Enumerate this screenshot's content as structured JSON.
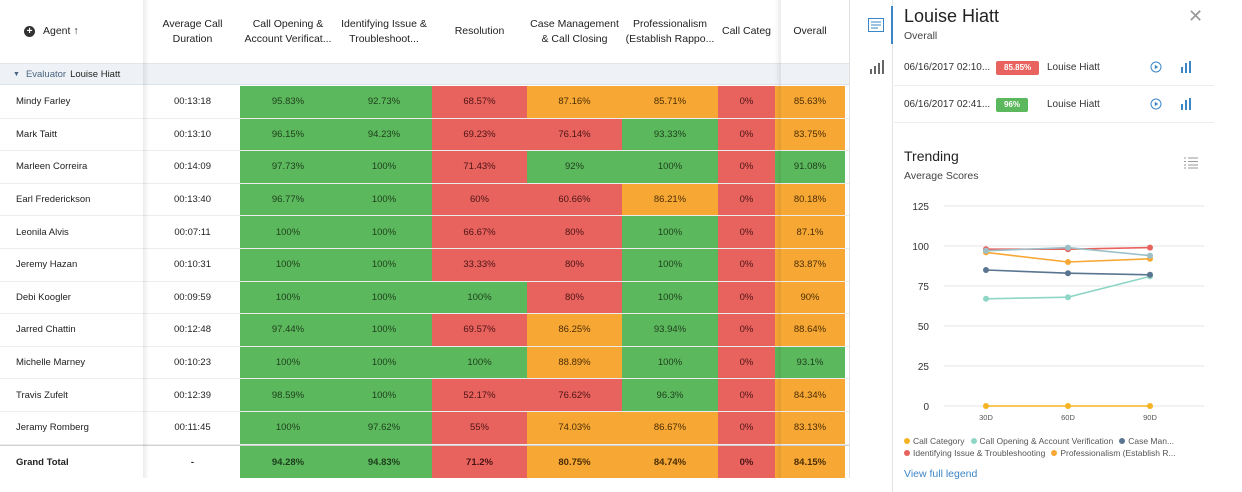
{
  "table": {
    "headers": [
      {
        "label": "Agent ↑"
      },
      {
        "label": "Average Call Duration"
      },
      {
        "label": "Call Opening & Account Verificat..."
      },
      {
        "label": "Identifying Issue & Troubleshoot..."
      },
      {
        "label": "Resolution"
      },
      {
        "label": "Case Management & Call Closing"
      },
      {
        "label": "Professionalism (Establish Rappo..."
      },
      {
        "label": "Call Categ"
      },
      {
        "label": "Overall"
      }
    ],
    "evaluator_label": "Evaluator",
    "evaluator_name": "Louise Hiatt",
    "rows": [
      {
        "agent": "Mindy Farley",
        "duration": "00:13:18",
        "cells": [
          [
            "95.83%",
            "g"
          ],
          [
            "92.73%",
            "g"
          ],
          [
            "68.57%",
            "r"
          ],
          [
            "87.16%",
            "o"
          ],
          [
            "85.71%",
            "o"
          ],
          [
            "0%",
            "r"
          ],
          [
            "85.63%",
            "o"
          ]
        ]
      },
      {
        "agent": "Mark Taitt",
        "duration": "00:13:10",
        "cells": [
          [
            "96.15%",
            "g"
          ],
          [
            "94.23%",
            "g"
          ],
          [
            "69.23%",
            "r"
          ],
          [
            "76.14%",
            "r"
          ],
          [
            "93.33%",
            "g"
          ],
          [
            "0%",
            "r"
          ],
          [
            "83.75%",
            "o"
          ]
        ]
      },
      {
        "agent": "Marleen Correira",
        "duration": "00:14:09",
        "cells": [
          [
            "97.73%",
            "g"
          ],
          [
            "100%",
            "g"
          ],
          [
            "71.43%",
            "r"
          ],
          [
            "92%",
            "g"
          ],
          [
            "100%",
            "g"
          ],
          [
            "0%",
            "r"
          ],
          [
            "91.08%",
            "g"
          ]
        ]
      },
      {
        "agent": "Earl Frederickson",
        "duration": "00:13:40",
        "cells": [
          [
            "96.77%",
            "g"
          ],
          [
            "100%",
            "g"
          ],
          [
            "60%",
            "r"
          ],
          [
            "60.66%",
            "r"
          ],
          [
            "86.21%",
            "o"
          ],
          [
            "0%",
            "r"
          ],
          [
            "80.18%",
            "o"
          ]
        ]
      },
      {
        "agent": "Leonila Alvis",
        "duration": "00:07:11",
        "cells": [
          [
            "100%",
            "g"
          ],
          [
            "100%",
            "g"
          ],
          [
            "66.67%",
            "r"
          ],
          [
            "80%",
            "r"
          ],
          [
            "100%",
            "g"
          ],
          [
            "0%",
            "r"
          ],
          [
            "87.1%",
            "o"
          ]
        ]
      },
      {
        "agent": "Jeremy Hazan",
        "duration": "00:10:31",
        "cells": [
          [
            "100%",
            "g"
          ],
          [
            "100%",
            "g"
          ],
          [
            "33.33%",
            "r"
          ],
          [
            "80%",
            "r"
          ],
          [
            "100%",
            "g"
          ],
          [
            "0%",
            "r"
          ],
          [
            "83.87%",
            "o"
          ]
        ]
      },
      {
        "agent": "Debi Koogler",
        "duration": "00:09:59",
        "cells": [
          [
            "100%",
            "g"
          ],
          [
            "100%",
            "g"
          ],
          [
            "100%",
            "g"
          ],
          [
            "80%",
            "r"
          ],
          [
            "100%",
            "g"
          ],
          [
            "0%",
            "r"
          ],
          [
            "90%",
            "o"
          ]
        ]
      },
      {
        "agent": "Jarred Chattin",
        "duration": "00:12:48",
        "cells": [
          [
            "97.44%",
            "g"
          ],
          [
            "100%",
            "g"
          ],
          [
            "69.57%",
            "r"
          ],
          [
            "86.25%",
            "o"
          ],
          [
            "93.94%",
            "g"
          ],
          [
            "0%",
            "r"
          ],
          [
            "88.64%",
            "o"
          ]
        ]
      },
      {
        "agent": "Michelle Marney",
        "duration": "00:10:23",
        "cells": [
          [
            "100%",
            "g"
          ],
          [
            "100%",
            "g"
          ],
          [
            "100%",
            "g"
          ],
          [
            "88.89%",
            "o"
          ],
          [
            "100%",
            "g"
          ],
          [
            "0%",
            "r"
          ],
          [
            "93.1%",
            "g"
          ]
        ]
      },
      {
        "agent": "Travis Zufelt",
        "duration": "00:12:39",
        "cells": [
          [
            "98.59%",
            "g"
          ],
          [
            "100%",
            "g"
          ],
          [
            "52.17%",
            "r"
          ],
          [
            "76.62%",
            "r"
          ],
          [
            "96.3%",
            "g"
          ],
          [
            "0%",
            "r"
          ],
          [
            "84.34%",
            "o"
          ]
        ]
      },
      {
        "agent": "Jeramy Romberg",
        "duration": "00:11:45",
        "cells": [
          [
            "100%",
            "g"
          ],
          [
            "97.62%",
            "g"
          ],
          [
            "55%",
            "r"
          ],
          [
            "74.03%",
            "o"
          ],
          [
            "86.67%",
            "o"
          ],
          [
            "0%",
            "r"
          ],
          [
            "83.13%",
            "o"
          ]
        ]
      }
    ],
    "total": {
      "agent": "Grand Total",
      "duration": "-",
      "cells": [
        [
          "94.28%",
          "g"
        ],
        [
          "94.83%",
          "g"
        ],
        [
          "71.2%",
          "r"
        ],
        [
          "80.75%",
          "o"
        ],
        [
          "84.74%",
          "o"
        ],
        [
          "0%",
          "r"
        ],
        [
          "84.15%",
          "o"
        ]
      ]
    }
  },
  "colors": {
    "green": "#5cb85c",
    "red": "#e8625e",
    "orange": "#f7a834",
    "accent": "#3d86c6"
  },
  "panel": {
    "title": "Louise Hiatt",
    "subtitle": "Overall",
    "evaluations": [
      {
        "datetime": "06/16/2017 02:10...",
        "score": "85.85%",
        "score_color": "#e8625e",
        "evaluator": "Louise Hiatt"
      },
      {
        "datetime": "06/16/2017 02:41...",
        "score": "96%",
        "score_color": "#5cb85c",
        "evaluator": "Louise Hiatt"
      }
    ],
    "trending_title": "Trending",
    "trending_subtitle": "Average Scores",
    "view_full_legend": "View full legend"
  },
  "chart_data": {
    "type": "line",
    "x": [
      "30D",
      "60D",
      "90D"
    ],
    "ylim": [
      0,
      125
    ],
    "yticks": [
      0,
      25,
      50,
      75,
      100,
      125
    ],
    "series": [
      {
        "name": "Call Category",
        "color": "#f5b324",
        "values": [
          0,
          0,
          0
        ]
      },
      {
        "name": "Call Opening & Account Verification",
        "color": "#8fd6c7",
        "values": [
          67,
          68,
          81
        ]
      },
      {
        "name": "Case Man...",
        "color": "#5a7590",
        "values": [
          85,
          83,
          82
        ]
      },
      {
        "name": "Identifying Issue & Troubleshooting",
        "color": "#e8625e",
        "values": [
          98,
          98,
          99
        ]
      },
      {
        "name": "Professionalism (Establish R...",
        "color": "#f7a834",
        "values": [
          96,
          90,
          92
        ]
      },
      {
        "name": "",
        "color": "#9cc0c7",
        "values": [
          97,
          99,
          94
        ]
      }
    ],
    "legend_items": [
      {
        "label": "Call Category",
        "color": "#f5b324"
      },
      {
        "label": "Call Opening & Account Verification",
        "color": "#8fd6c7"
      },
      {
        "label": "Case Man...",
        "color": "#5a7590"
      },
      {
        "label": "Identifying Issue & Troubleshooting",
        "color": "#e8625e"
      },
      {
        "label": "Professionalism (Establish R...",
        "color": "#f7a834"
      }
    ]
  }
}
